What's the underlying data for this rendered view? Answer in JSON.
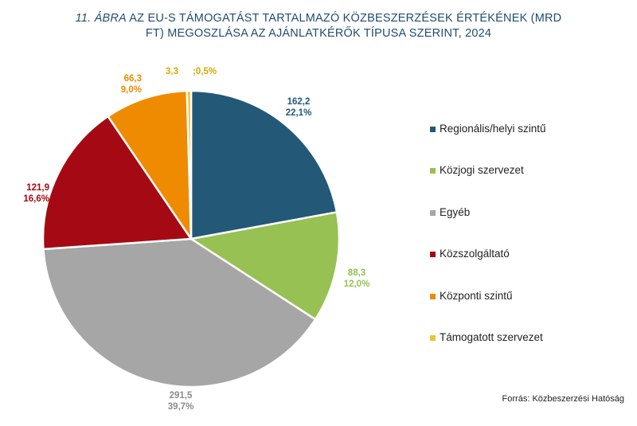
{
  "title": {
    "prefix_italic": "11. ÁBRA",
    "line1_rest": " AZ EU-S TÁMOGATÁST TARTALMAZÓ KÖZBESZERZÉSEK ÉRTÉKÉNEK (MRD",
    "line2": "FT) MEGOSZLÁSA AZ AJÁNLATKÉRŐK TÍPUSA SZERINT, 2024"
  },
  "source": "Forrás: Közbeszerzési Hatóság",
  "chart_data": {
    "type": "pie",
    "title": "11. ÁBRA AZ EU-S TÁMOGATÁST TARTALMAZÓ KÖZBESZERZÉSEK ÉRTÉKÉNEK (MRD FT) MEGOSZLÁSA AZ AJÁNLATKÉRŐK TÍPUSA SZERINT, 2024",
    "legend_position": "right",
    "slices": [
      {
        "name": "Regionális/helyi szintű",
        "value": 162.2,
        "value_label": "162,2",
        "percent_label": "22,1%",
        "color": "#235877"
      },
      {
        "name": "Közjogi szervezet",
        "value": 88.3,
        "value_label": "88,3",
        "percent_label": "12,0%",
        "color": "#97c152"
      },
      {
        "name": "Egyéb",
        "value": 291.5,
        "value_label": "291,5",
        "percent_label": "39,7%",
        "color": "#a6a6a6"
      },
      {
        "name": "Közszolgáltató",
        "value": 121.9,
        "value_label": "121,9",
        "percent_label": "16,6%",
        "color": "#a50a14"
      },
      {
        "name": "Központi szintű",
        "value": 66.3,
        "value_label": "66,3",
        "percent_label": "9,0%",
        "color": "#ef8b00"
      },
      {
        "name": "Támogatott szervezet",
        "value": 3.3,
        "value_label": "3,3",
        "percent_label": ";0,5%",
        "color": "#f1c232"
      }
    ]
  }
}
